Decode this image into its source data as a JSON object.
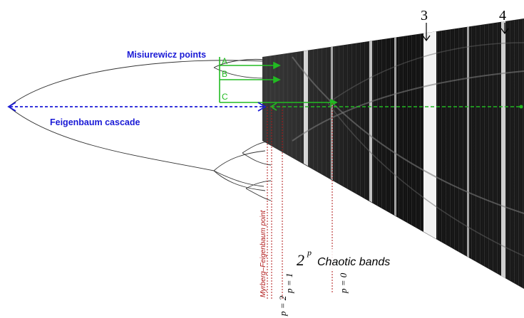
{
  "labels": {
    "misiurewicz": "Misiurewicz points",
    "feigenbaum_cascade": "Feigenbaum cascade",
    "point_a": "A",
    "point_b": "B",
    "point_c": "C",
    "myrberg": "Myrberg–Feigenbaum point",
    "chaotic_base": "2",
    "chaotic_exp": "p",
    "chaotic_text": "Chaotic bands",
    "window_3": "3",
    "window_4": "4",
    "p2": "p = 2",
    "p1": "p = 1",
    "p0": "p = 0"
  },
  "colors": {
    "misiurewicz_text": "#1a1ad6",
    "cascade_arrow": "#1a1ad6",
    "green": "#22bb22",
    "myrberg_text": "#b01818",
    "red_dotted": "#b01818",
    "bifurcation_line": "#333333"
  }
}
